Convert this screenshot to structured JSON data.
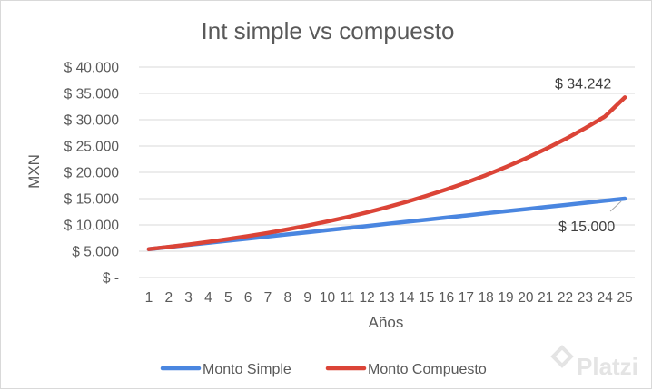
{
  "chart_data": {
    "type": "line",
    "title": "Int simple vs compuesto",
    "xlabel": "Años",
    "ylabel": "MXN",
    "ylim": [
      0,
      40000
    ],
    "y_ticks": [
      0,
      5000,
      10000,
      15000,
      20000,
      25000,
      30000,
      35000,
      40000
    ],
    "y_tick_labels": [
      "$ -",
      "$ 5.000",
      "$ 10.000",
      "$ 15.000",
      "$ 20.000",
      "$ 25.000",
      "$ 30.000",
      "$ 35.000",
      "$ 40.000"
    ],
    "categories": [
      "1",
      "2",
      "3",
      "4",
      "5",
      "6",
      "7",
      "8",
      "9",
      "10",
      "11",
      "12",
      "13",
      "14",
      "15",
      "16",
      "17",
      "18",
      "19",
      "20",
      "21",
      "22",
      "23",
      "24",
      "25"
    ],
    "grid": true,
    "legend_position": "bottom",
    "series": [
      {
        "name": "Monto Simple",
        "color": "#4a86e0",
        "values": [
          5400,
          5800,
          6200,
          6600,
          7000,
          7400,
          7800,
          8200,
          8600,
          9000,
          9400,
          9800,
          10200,
          10600,
          11000,
          11400,
          11800,
          12200,
          12600,
          13000,
          13400,
          13800,
          14200,
          14600,
          15000
        ],
        "end_label": "$ 15.000"
      },
      {
        "name": "Monto Compuesto",
        "color": "#db4437",
        "values": [
          5400,
          5823,
          6279,
          6771,
          7302,
          7874,
          8491,
          9157,
          9874,
          10648,
          11482,
          12382,
          13353,
          14399,
          15528,
          16745,
          18057,
          19472,
          20998,
          22644,
          24419,
          26333,
          28397,
          30622,
          34242
        ],
        "end_label": "$ 34.242"
      }
    ]
  },
  "watermark": {
    "text": "Platzi",
    "icon": "platzi-logo-icon"
  }
}
